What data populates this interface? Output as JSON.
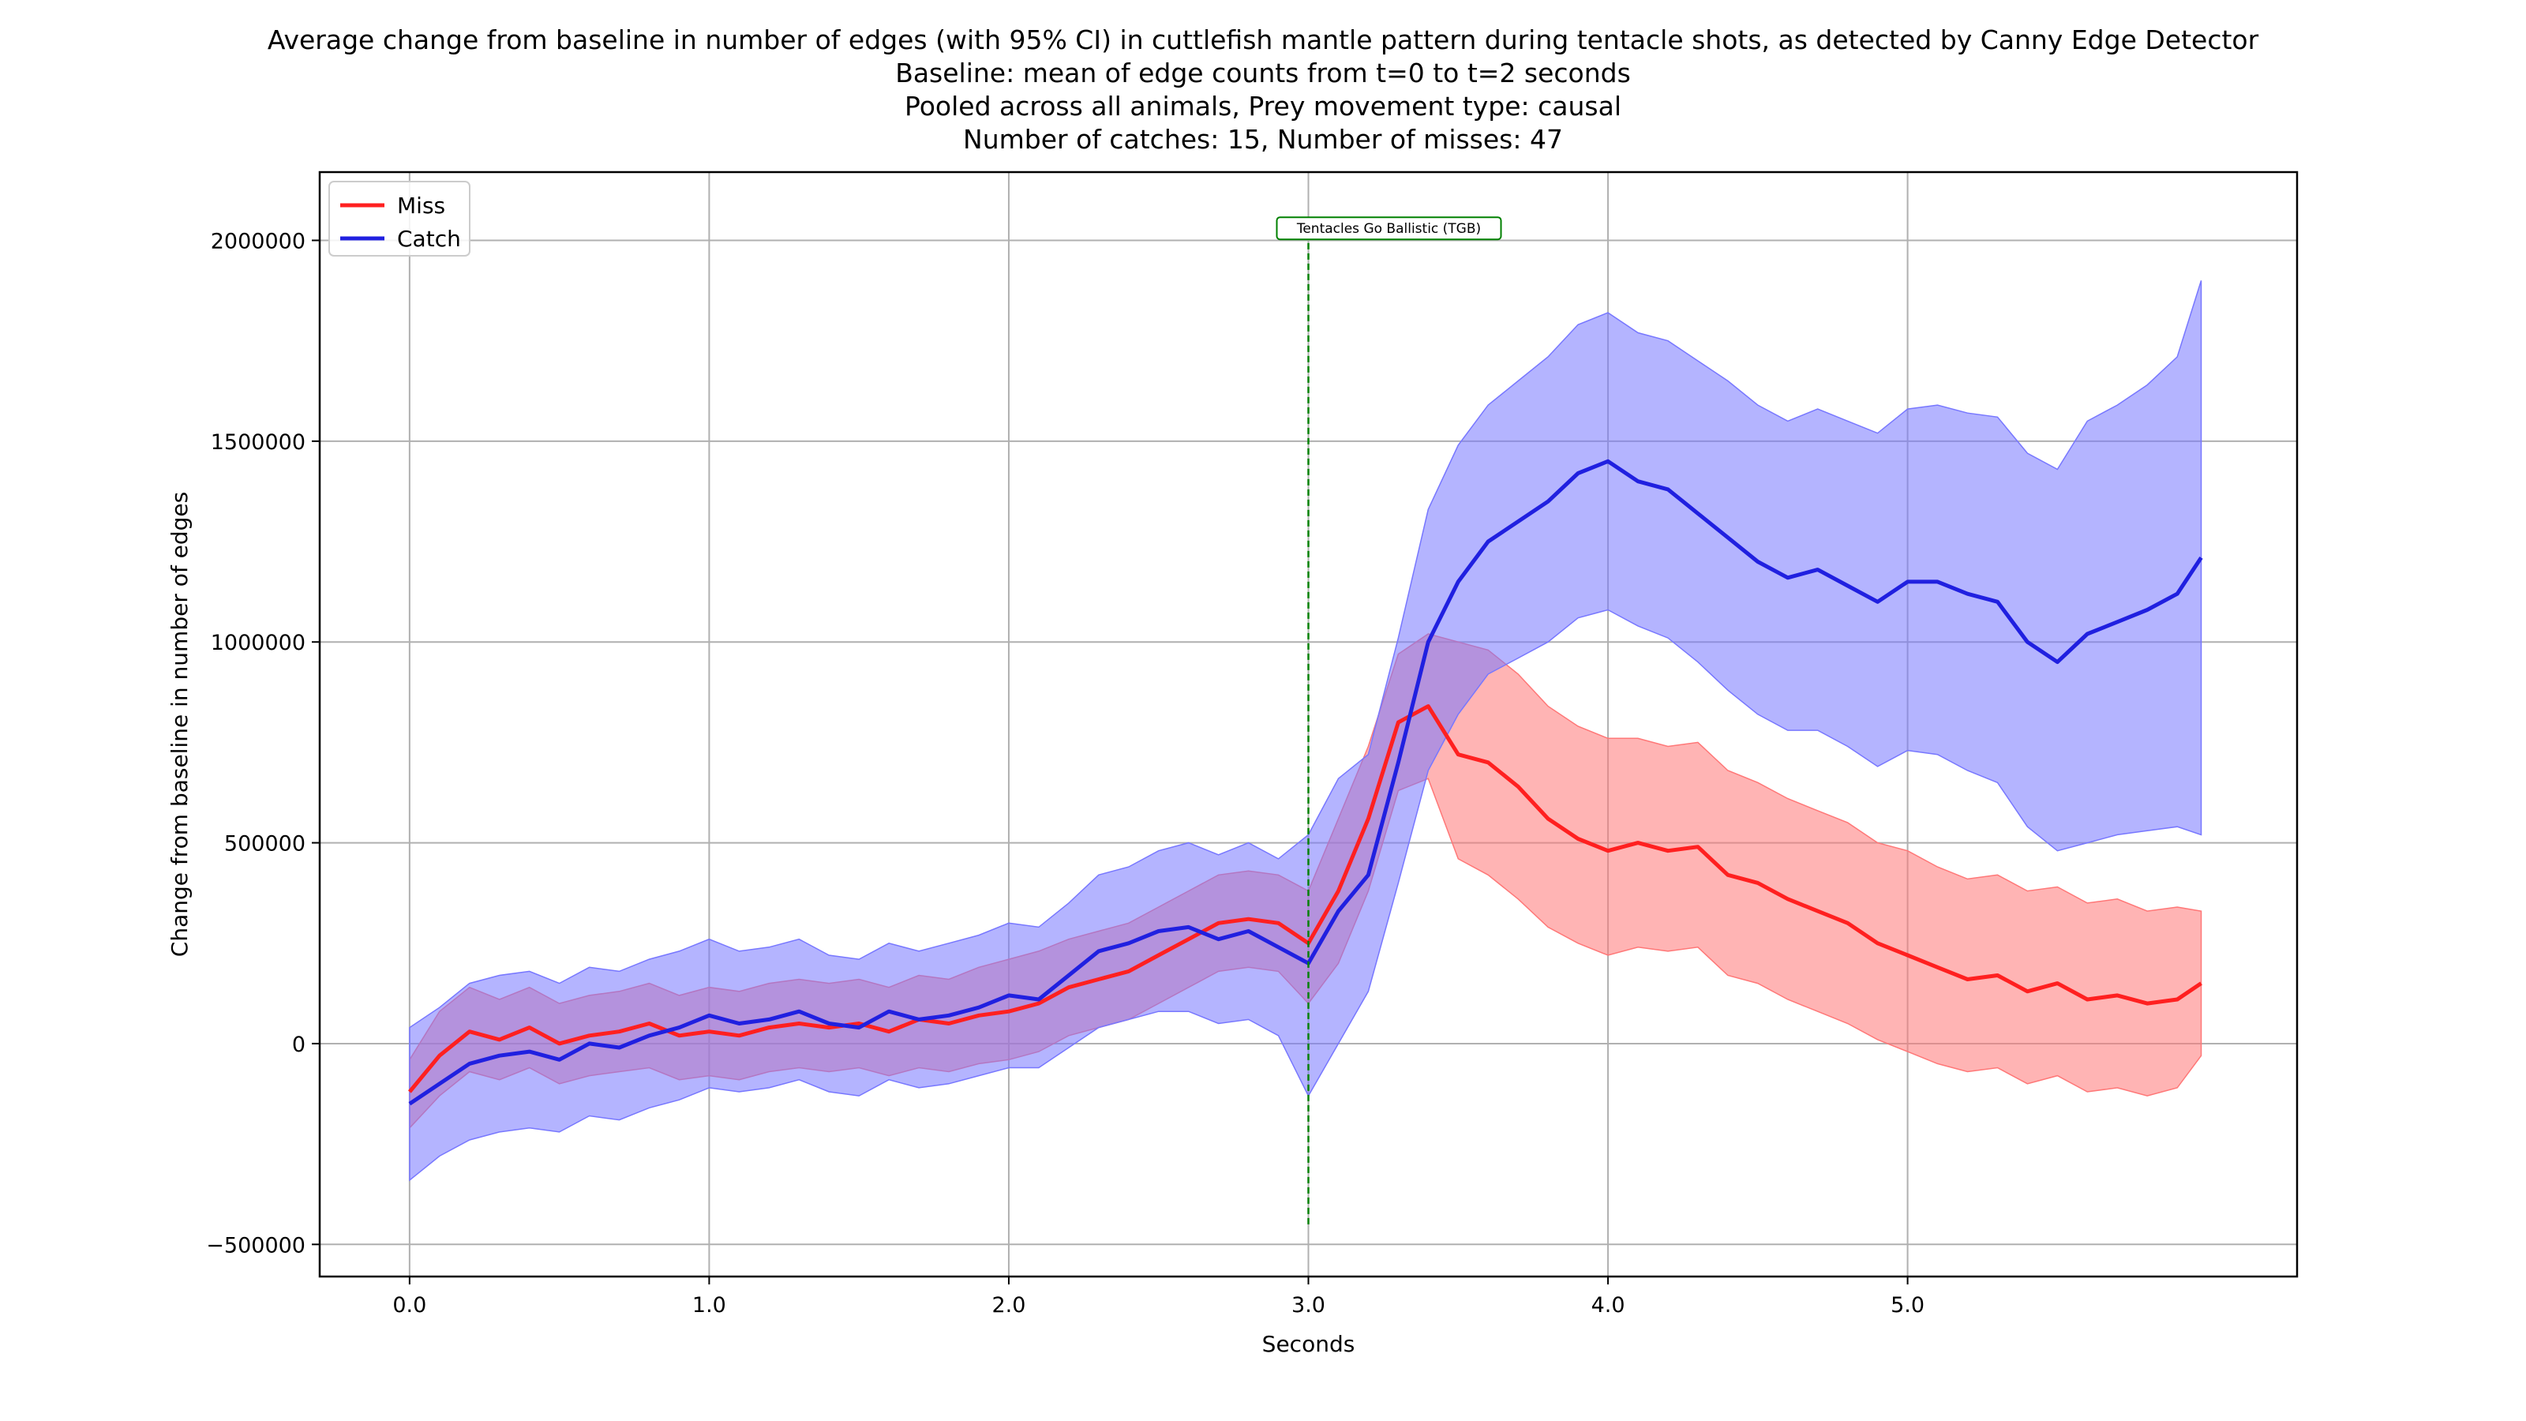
{
  "chart_data": {
    "type": "line",
    "title_lines": [
      "Average change from baseline in number of edges (with 95% CI) in cuttlefish mantle pattern during tentacle shots, as detected by Canny Edge Detector",
      "Baseline: mean of edge counts from t=0 to t=2 seconds",
      "Pooled across all animals, Prey movement type: causal",
      "Number of catches: 15, Number of misses: 47"
    ],
    "xlabel": "Seconds",
    "ylabel": "Change from baseline in number of edges",
    "xlim": [
      -0.3,
      6.3
    ],
    "ylim": [
      -580000,
      2170000
    ],
    "xticks": [
      0.0,
      1.0,
      2.0,
      3.0,
      4.0,
      5.0
    ],
    "xtick_labels": [
      "0.0",
      "1.0",
      "2.0",
      "3.0",
      "4.0",
      "5.0"
    ],
    "yticks": [
      -500000,
      0,
      500000,
      1000000,
      1500000,
      2000000
    ],
    "ytick_labels": [
      "−500000",
      "0",
      "500000",
      "1000000",
      "1500000",
      "2000000"
    ],
    "grid": true,
    "legend_placement": "upper left",
    "annotation": {
      "text": "Tentacles Go Ballistic (TGB)",
      "x": 3.0,
      "y_from": -450000,
      "y_to": 2030000,
      "color": "#008000"
    },
    "series": [
      {
        "name": "Miss",
        "color": "#ff2020",
        "fill_color": "#ff7777",
        "x": [
          0.0,
          0.1,
          0.2,
          0.3,
          0.4,
          0.5,
          0.6,
          0.7,
          0.8,
          0.9,
          1.0,
          1.1,
          1.2,
          1.3,
          1.4,
          1.5,
          1.6,
          1.7,
          1.8,
          1.9,
          2.0,
          2.1,
          2.2,
          2.3,
          2.4,
          2.5,
          2.6,
          2.7,
          2.8,
          2.9,
          3.0,
          3.1,
          3.2,
          3.3,
          3.4,
          3.5,
          3.6,
          3.7,
          3.8,
          3.9,
          4.0,
          4.1,
          4.2,
          4.3,
          4.4,
          4.5,
          4.6,
          4.7,
          4.8,
          4.9,
          5.0,
          5.1,
          5.2,
          5.3,
          5.4,
          5.5,
          5.6,
          5.7,
          5.8,
          5.9,
          5.98
        ],
        "mean": [
          -120000,
          -30000,
          30000,
          10000,
          40000,
          0,
          20000,
          30000,
          50000,
          20000,
          30000,
          20000,
          40000,
          50000,
          40000,
          50000,
          30000,
          60000,
          50000,
          70000,
          80000,
          100000,
          140000,
          160000,
          180000,
          220000,
          260000,
          300000,
          310000,
          300000,
          250000,
          380000,
          560000,
          800000,
          840000,
          720000,
          700000,
          640000,
          560000,
          510000,
          480000,
          500000,
          480000,
          490000,
          420000,
          400000,
          360000,
          330000,
          300000,
          250000,
          220000,
          190000,
          160000,
          170000,
          130000,
          150000,
          110000,
          120000,
          100000,
          110000,
          150000
        ],
        "ci_lower": [
          -210000,
          -130000,
          -70000,
          -90000,
          -60000,
          -100000,
          -80000,
          -70000,
          -60000,
          -90000,
          -80000,
          -90000,
          -70000,
          -60000,
          -70000,
          -60000,
          -80000,
          -60000,
          -70000,
          -50000,
          -40000,
          -20000,
          20000,
          40000,
          60000,
          100000,
          140000,
          180000,
          190000,
          180000,
          100000,
          200000,
          380000,
          630000,
          660000,
          460000,
          420000,
          360000,
          290000,
          250000,
          220000,
          240000,
          230000,
          240000,
          170000,
          150000,
          110000,
          80000,
          50000,
          10000,
          -20000,
          -50000,
          -70000,
          -60000,
          -100000,
          -80000,
          -120000,
          -110000,
          -130000,
          -110000,
          -30000
        ],
        "ci_upper": [
          -40000,
          80000,
          140000,
          110000,
          140000,
          100000,
          120000,
          130000,
          150000,
          120000,
          140000,
          130000,
          150000,
          160000,
          150000,
          160000,
          140000,
          170000,
          160000,
          190000,
          210000,
          230000,
          260000,
          280000,
          300000,
          340000,
          380000,
          420000,
          430000,
          420000,
          380000,
          560000,
          740000,
          970000,
          1020000,
          1000000,
          980000,
          920000,
          840000,
          790000,
          760000,
          760000,
          740000,
          750000,
          680000,
          650000,
          610000,
          580000,
          550000,
          500000,
          480000,
          440000,
          410000,
          420000,
          380000,
          390000,
          350000,
          360000,
          330000,
          340000,
          330000
        ]
      },
      {
        "name": "Catch",
        "color": "#2020e0",
        "fill_color": "#7777ff",
        "x": [
          0.0,
          0.1,
          0.2,
          0.3,
          0.4,
          0.5,
          0.6,
          0.7,
          0.8,
          0.9,
          1.0,
          1.1,
          1.2,
          1.3,
          1.4,
          1.5,
          1.6,
          1.7,
          1.8,
          1.9,
          2.0,
          2.1,
          2.2,
          2.3,
          2.4,
          2.5,
          2.6,
          2.7,
          2.8,
          2.9,
          3.0,
          3.1,
          3.2,
          3.3,
          3.4,
          3.5,
          3.6,
          3.7,
          3.8,
          3.9,
          4.0,
          4.1,
          4.2,
          4.3,
          4.4,
          4.5,
          4.6,
          4.7,
          4.8,
          4.9,
          5.0,
          5.1,
          5.2,
          5.3,
          5.4,
          5.5,
          5.6,
          5.7,
          5.8,
          5.9,
          5.98
        ],
        "mean": [
          -150000,
          -100000,
          -50000,
          -30000,
          -20000,
          -40000,
          0,
          -10000,
          20000,
          40000,
          70000,
          50000,
          60000,
          80000,
          50000,
          40000,
          80000,
          60000,
          70000,
          90000,
          120000,
          110000,
          170000,
          230000,
          250000,
          280000,
          290000,
          260000,
          280000,
          240000,
          200000,
          330000,
          420000,
          700000,
          1000000,
          1150000,
          1250000,
          1300000,
          1350000,
          1420000,
          1450000,
          1400000,
          1380000,
          1320000,
          1260000,
          1200000,
          1160000,
          1180000,
          1140000,
          1100000,
          1150000,
          1150000,
          1120000,
          1100000,
          1000000,
          950000,
          1020000,
          1050000,
          1080000,
          1120000,
          1210000
        ],
        "ci_lower": [
          -340000,
          -280000,
          -240000,
          -220000,
          -210000,
          -220000,
          -180000,
          -190000,
          -160000,
          -140000,
          -110000,
          -120000,
          -110000,
          -90000,
          -120000,
          -130000,
          -90000,
          -110000,
          -100000,
          -80000,
          -60000,
          -60000,
          -10000,
          40000,
          60000,
          80000,
          80000,
          50000,
          60000,
          20000,
          -130000,
          0,
          130000,
          400000,
          680000,
          820000,
          920000,
          960000,
          1000000,
          1060000,
          1080000,
          1040000,
          1010000,
          950000,
          880000,
          820000,
          780000,
          780000,
          740000,
          690000,
          730000,
          720000,
          680000,
          650000,
          540000,
          480000,
          500000,
          520000,
          530000,
          540000,
          520000
        ],
        "ci_upper": [
          40000,
          90000,
          150000,
          170000,
          180000,
          150000,
          190000,
          180000,
          210000,
          230000,
          260000,
          230000,
          240000,
          260000,
          220000,
          210000,
          250000,
          230000,
          250000,
          270000,
          300000,
          290000,
          350000,
          420000,
          440000,
          480000,
          500000,
          470000,
          500000,
          460000,
          520000,
          660000,
          720000,
          1010000,
          1330000,
          1490000,
          1590000,
          1650000,
          1710000,
          1790000,
          1820000,
          1770000,
          1750000,
          1700000,
          1650000,
          1590000,
          1550000,
          1580000,
          1550000,
          1520000,
          1580000,
          1590000,
          1570000,
          1560000,
          1470000,
          1430000,
          1550000,
          1590000,
          1640000,
          1710000,
          1900000
        ]
      }
    ]
  }
}
